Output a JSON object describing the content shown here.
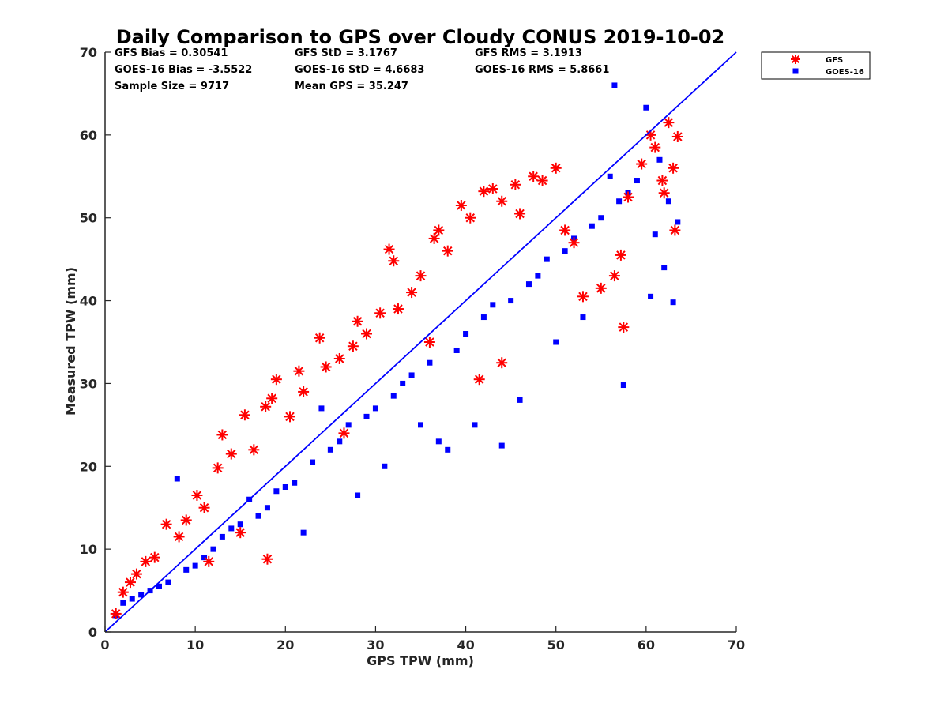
{
  "chart_data": {
    "type": "scatter",
    "title": "Daily Comparison to GPS over Cloudy CONUS 2019-10-02",
    "xlabel": "GPS TPW (mm)",
    "ylabel": "Measured TPW (mm)",
    "xlim": [
      0,
      70
    ],
    "ylim": [
      0,
      70
    ],
    "xticks": [
      "0",
      "10",
      "20",
      "30",
      "40",
      "50",
      "60",
      "70"
    ],
    "yticks": [
      "0",
      "10",
      "20",
      "30",
      "40",
      "50",
      "60",
      "70"
    ],
    "grid": false,
    "legend_position": "outside top-right",
    "one_to_one_line": {
      "from": [
        0,
        0
      ],
      "to": [
        70,
        70
      ],
      "color": "#0000ff"
    },
    "stats": {
      "gfs_bias": "GFS Bias = 0.30541",
      "gfs_std": "GFS StD = 3.1767",
      "gfs_rms": "GFS RMS = 3.1913",
      "goes_bias": "GOES-16 Bias = -3.5522",
      "goes_std": "GOES-16 StD = 4.6683",
      "goes_rms": "GOES-16 RMS = 5.8661",
      "sample_size": "Sample Size = 9717",
      "mean_gps": "Mean GPS = 35.247"
    },
    "series": [
      {
        "name": "GFS",
        "marker": "asterisk",
        "color": "#ff0000",
        "points": [
          [
            1.2,
            2.2
          ],
          [
            2.0,
            4.8
          ],
          [
            2.8,
            6.0
          ],
          [
            3.5,
            7.0
          ],
          [
            4.5,
            8.5
          ],
          [
            5.5,
            9.0
          ],
          [
            6.8,
            13.0
          ],
          [
            8.2,
            11.5
          ],
          [
            9.0,
            13.5
          ],
          [
            10.2,
            16.5
          ],
          [
            11.0,
            15.0
          ],
          [
            12.5,
            19.8
          ],
          [
            13.0,
            23.8
          ],
          [
            14.0,
            21.5
          ],
          [
            15.5,
            26.2
          ],
          [
            16.5,
            22.0
          ],
          [
            17.8,
            27.2
          ],
          [
            18.5,
            28.2
          ],
          [
            19.0,
            30.5
          ],
          [
            20.5,
            26.0
          ],
          [
            21.5,
            31.5
          ],
          [
            22.0,
            29.0
          ],
          [
            23.8,
            35.5
          ],
          [
            24.5,
            32.0
          ],
          [
            26.0,
            33.0
          ],
          [
            27.5,
            34.5
          ],
          [
            28.0,
            37.5
          ],
          [
            29.0,
            36.0
          ],
          [
            30.5,
            38.5
          ],
          [
            31.5,
            46.2
          ],
          [
            32.0,
            44.8
          ],
          [
            32.5,
            39.0
          ],
          [
            34.0,
            41.0
          ],
          [
            35.0,
            43.0
          ],
          [
            36.5,
            47.5
          ],
          [
            37.0,
            48.5
          ],
          [
            38.0,
            46.0
          ],
          [
            39.5,
            51.5
          ],
          [
            40.5,
            50.0
          ],
          [
            42.0,
            53.2
          ],
          [
            43.0,
            53.5
          ],
          [
            44.0,
            52.0
          ],
          [
            45.5,
            54.0
          ],
          [
            46.0,
            50.5
          ],
          [
            47.5,
            55.0
          ],
          [
            48.5,
            54.5
          ],
          [
            50.0,
            56.0
          ],
          [
            51.0,
            48.5
          ],
          [
            52.0,
            47.0
          ],
          [
            53.0,
            40.5
          ],
          [
            55.0,
            41.5
          ],
          [
            56.5,
            43.0
          ],
          [
            57.2,
            45.5
          ],
          [
            57.5,
            36.8
          ],
          [
            58.0,
            52.5
          ],
          [
            59.5,
            56.5
          ],
          [
            61.0,
            58.5
          ],
          [
            62.0,
            53.0
          ],
          [
            62.5,
            61.5
          ],
          [
            63.0,
            56.0
          ],
          [
            63.5,
            59.8
          ],
          [
            63.2,
            48.5
          ],
          [
            61.8,
            54.5
          ],
          [
            60.5,
            60.0
          ],
          [
            44.0,
            32.5
          ],
          [
            41.5,
            30.5
          ],
          [
            36.0,
            35.0
          ],
          [
            26.5,
            24.0
          ],
          [
            18.0,
            8.8
          ],
          [
            15.0,
            12.0
          ],
          [
            11.5,
            8.5
          ]
        ]
      },
      {
        "name": "GOES-16",
        "marker": "square",
        "color": "#0000ff",
        "points": [
          [
            1.2,
            2.0
          ],
          [
            2.0,
            3.5
          ],
          [
            3.0,
            4.0
          ],
          [
            4.0,
            4.5
          ],
          [
            5.0,
            5.0
          ],
          [
            6.0,
            5.5
          ],
          [
            7.0,
            6.0
          ],
          [
            8.0,
            18.5
          ],
          [
            9.0,
            7.5
          ],
          [
            10.0,
            8.0
          ],
          [
            11.0,
            9.0
          ],
          [
            12.0,
            10.0
          ],
          [
            13.0,
            11.5
          ],
          [
            14.0,
            12.5
          ],
          [
            15.0,
            13.0
          ],
          [
            16.0,
            16.0
          ],
          [
            17.0,
            14.0
          ],
          [
            18.0,
            15.0
          ],
          [
            19.0,
            17.0
          ],
          [
            20.0,
            17.5
          ],
          [
            21.0,
            18.0
          ],
          [
            22.0,
            12.0
          ],
          [
            23.0,
            20.5
          ],
          [
            24.0,
            27.0
          ],
          [
            25.0,
            22.0
          ],
          [
            26.0,
            23.0
          ],
          [
            27.0,
            25.0
          ],
          [
            28.0,
            16.5
          ],
          [
            29.0,
            26.0
          ],
          [
            30.0,
            27.0
          ],
          [
            31.0,
            20.0
          ],
          [
            32.0,
            28.5
          ],
          [
            33.0,
            30.0
          ],
          [
            34.0,
            31.0
          ],
          [
            35.0,
            25.0
          ],
          [
            36.0,
            32.5
          ],
          [
            37.0,
            23.0
          ],
          [
            38.0,
            22.0
          ],
          [
            39.0,
            34.0
          ],
          [
            40.0,
            36.0
          ],
          [
            41.0,
            25.0
          ],
          [
            42.0,
            38.0
          ],
          [
            43.0,
            39.5
          ],
          [
            44.0,
            22.5
          ],
          [
            45.0,
            40.0
          ],
          [
            46.0,
            28.0
          ],
          [
            47.0,
            42.0
          ],
          [
            48.0,
            43.0
          ],
          [
            49.0,
            45.0
          ],
          [
            50.0,
            35.0
          ],
          [
            51.0,
            46.0
          ],
          [
            52.0,
            47.5
          ],
          [
            53.0,
            38.0
          ],
          [
            54.0,
            49.0
          ],
          [
            55.0,
            50.0
          ],
          [
            56.0,
            55.0
          ],
          [
            56.5,
            66.0
          ],
          [
            57.0,
            52.0
          ],
          [
            57.5,
            29.8
          ],
          [
            58.0,
            53.0
          ],
          [
            59.0,
            54.5
          ],
          [
            60.0,
            63.3
          ],
          [
            60.5,
            40.5
          ],
          [
            61.0,
            48.0
          ],
          [
            62.0,
            44.0
          ],
          [
            63.0,
            39.8
          ],
          [
            63.5,
            49.5
          ],
          [
            62.5,
            52.0
          ],
          [
            61.5,
            57.0
          ]
        ]
      }
    ]
  }
}
